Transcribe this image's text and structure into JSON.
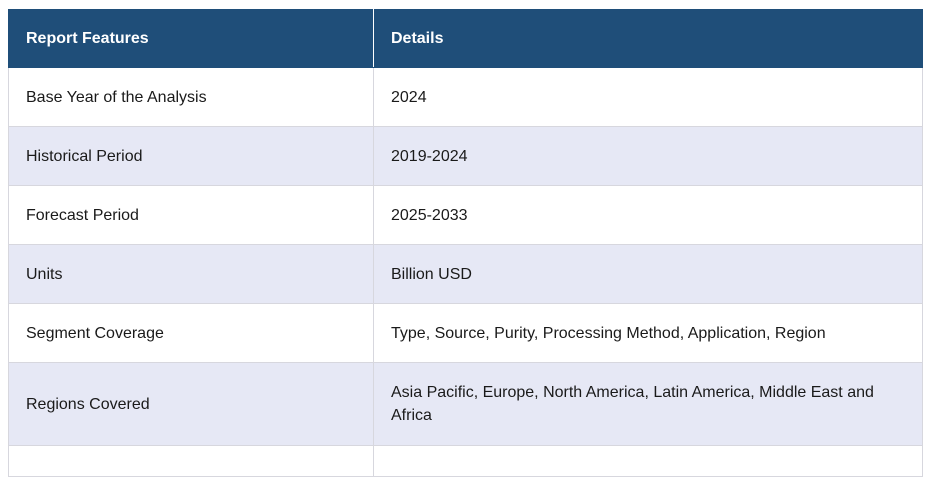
{
  "table": {
    "headers": [
      "Report Features",
      "Details"
    ],
    "rows": [
      {
        "feature": "Base Year of the Analysis",
        "details": "2024"
      },
      {
        "feature": "Historical Period",
        "details": "2019-2024"
      },
      {
        "feature": "Forecast Period",
        "details": "2025-2033"
      },
      {
        "feature": "Units",
        "details": "Billion USD"
      },
      {
        "feature": "Segment Coverage",
        "details": "Type, Source, Purity, Processing Method, Application, Region"
      },
      {
        "feature": "Regions Covered",
        "details": "Asia Pacific, Europe, North America, Latin America, Middle East and Africa"
      }
    ]
  },
  "colors": {
    "header_bg": "#1f4e79",
    "header_text": "#ffffff",
    "row_alt_bg": "#e6e8f5",
    "border": "#d7d7de"
  }
}
